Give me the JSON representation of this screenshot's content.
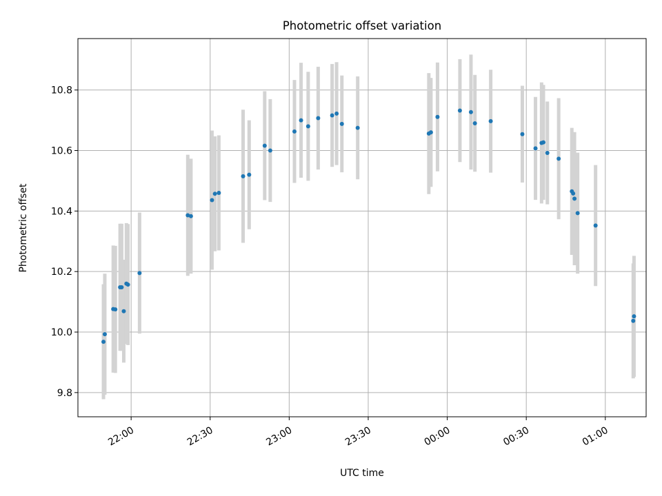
{
  "chart_data": {
    "type": "scatter",
    "title": "Photometric offset variation",
    "xlabel": "UTC time",
    "ylabel": "Photometric offset",
    "x_tick_labels": [
      "22:00",
      "22:30",
      "23:00",
      "23:30",
      "00:00",
      "00:30",
      "01:00"
    ],
    "y_tick_labels": [
      "9.8",
      "10.0",
      "10.2",
      "10.4",
      "10.6",
      "10.8"
    ],
    "x_tick_values_min": [
      0,
      30,
      60,
      90,
      120,
      150,
      180
    ],
    "y_tick_values": [
      9.8,
      10.0,
      10.2,
      10.4,
      10.6,
      10.8
    ],
    "xlim_min": [
      -20.2,
      195.5
    ],
    "ylim": [
      9.72,
      10.97
    ],
    "grid": true,
    "colors": {
      "point": "#1f77b4",
      "errorbar": "#d3d3d3",
      "grid": "#b0b0b0"
    },
    "points": [
      {
        "t": -10.5,
        "y": 9.968,
        "err": 0.19
      },
      {
        "t": -10.0,
        "y": 9.993,
        "err": 0.2
      },
      {
        "t": -6.8,
        "y": 10.076,
        "err": 0.21
      },
      {
        "t": -6.0,
        "y": 10.075,
        "err": 0.21
      },
      {
        "t": -4.2,
        "y": 10.148,
        "err": 0.21
      },
      {
        "t": -3.6,
        "y": 10.148,
        "err": 0.21
      },
      {
        "t": -2.8,
        "y": 10.069,
        "err": 0.17
      },
      {
        "t": -1.8,
        "y": 10.16,
        "err": 0.2
      },
      {
        "t": -1.2,
        "y": 10.157,
        "err": 0.2
      },
      {
        "t": 3.2,
        "y": 10.195,
        "err": 0.2
      },
      {
        "t": 21.5,
        "y": 10.386,
        "err": 0.2
      },
      {
        "t": 22.7,
        "y": 10.383,
        "err": 0.19
      },
      {
        "t": 30.7,
        "y": 10.436,
        "err": 0.23
      },
      {
        "t": 31.8,
        "y": 10.457,
        "err": 0.19
      },
      {
        "t": 33.3,
        "y": 10.46,
        "err": 0.19
      },
      {
        "t": 42.5,
        "y": 10.515,
        "err": 0.22
      },
      {
        "t": 44.8,
        "y": 10.52,
        "err": 0.18
      },
      {
        "t": 50.7,
        "y": 10.616,
        "err": 0.18
      },
      {
        "t": 52.8,
        "y": 10.6,
        "err": 0.17
      },
      {
        "t": 62.0,
        "y": 10.663,
        "err": 0.17
      },
      {
        "t": 64.5,
        "y": 10.7,
        "err": 0.19
      },
      {
        "t": 67.2,
        "y": 10.68,
        "err": 0.18
      },
      {
        "t": 71.0,
        "y": 10.707,
        "err": 0.17
      },
      {
        "t": 76.3,
        "y": 10.716,
        "err": 0.17
      },
      {
        "t": 78.0,
        "y": 10.722,
        "err": 0.17
      },
      {
        "t": 80.0,
        "y": 10.688,
        "err": 0.16
      },
      {
        "t": 86.0,
        "y": 10.675,
        "err": 0.17
      },
      {
        "t": 113.0,
        "y": 10.656,
        "err": 0.2
      },
      {
        "t": 113.8,
        "y": 10.66,
        "err": 0.18
      },
      {
        "t": 116.3,
        "y": 10.711,
        "err": 0.18
      },
      {
        "t": 124.8,
        "y": 10.732,
        "err": 0.17
      },
      {
        "t": 129.0,
        "y": 10.727,
        "err": 0.19
      },
      {
        "t": 130.5,
        "y": 10.69,
        "err": 0.16
      },
      {
        "t": 136.5,
        "y": 10.697,
        "err": 0.17
      },
      {
        "t": 148.5,
        "y": 10.654,
        "err": 0.16
      },
      {
        "t": 153.5,
        "y": 10.607,
        "err": 0.17
      },
      {
        "t": 155.8,
        "y": 10.625,
        "err": 0.2
      },
      {
        "t": 156.5,
        "y": 10.627,
        "err": 0.19
      },
      {
        "t": 158.0,
        "y": 10.592,
        "err": 0.17
      },
      {
        "t": 162.3,
        "y": 10.573,
        "err": 0.2
      },
      {
        "t": 167.3,
        "y": 10.465,
        "err": 0.21
      },
      {
        "t": 167.8,
        "y": 10.458,
        "err": 0.2
      },
      {
        "t": 168.3,
        "y": 10.441,
        "err": 0.22
      },
      {
        "t": 169.5,
        "y": 10.393,
        "err": 0.2
      },
      {
        "t": 176.3,
        "y": 10.352,
        "err": 0.2
      },
      {
        "t": 190.6,
        "y": 10.037,
        "err": 0.19
      },
      {
        "t": 190.9,
        "y": 10.052,
        "err": 0.2
      }
    ]
  }
}
